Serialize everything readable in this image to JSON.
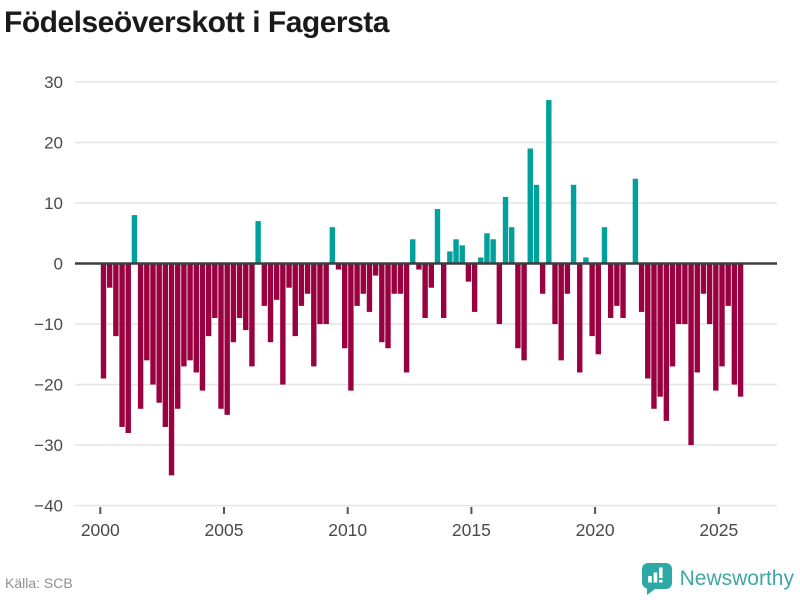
{
  "title": "Födelseöverskott i Fagersta",
  "source": "Källa: SCB",
  "logo": {
    "text": "Newsworthy"
  },
  "colors": {
    "positive": "#00A19C",
    "negative": "#9A0140",
    "grid": "#e6e6e6",
    "zero_line": "#3d3d3d",
    "axis_label": "#4a4a4a",
    "tick_mark": "#555555",
    "title": "#1a1a1a",
    "source_text": "#8f8f94",
    "logo_teal": "#3fa7a4"
  },
  "chart_data": {
    "type": "bar",
    "title": "Födelseöverskott i Fagersta",
    "source": "Källa: SCB",
    "frequency": "quarterly",
    "x_start": "2000Q1",
    "x_end": "2025Q4",
    "x_tick_labels": [
      "2000",
      "2005",
      "2010",
      "2015",
      "2020",
      "2025"
    ],
    "y_tick_labels": [
      "30",
      "20",
      "10",
      "0",
      "−10",
      "−20",
      "−30",
      "−40"
    ],
    "y_ticks": [
      30,
      20,
      10,
      0,
      -10,
      -20,
      -30,
      -40
    ],
    "ylim": [
      -40,
      30
    ],
    "grid": "horizontal",
    "legend": "none",
    "values": [
      -19,
      -4,
      -12,
      -27,
      -28,
      8,
      -24,
      -16,
      -20,
      -23,
      -27,
      -35,
      -24,
      -17,
      -16,
      -18,
      -21,
      -12,
      -9,
      -24,
      -25,
      -13,
      -9,
      -11,
      -17,
      7,
      -7,
      -13,
      -6,
      -20,
      -4,
      -12,
      -7,
      -5,
      -17,
      -10,
      -10,
      6,
      -1,
      -14,
      -21,
      -7,
      -5,
      -8,
      -2,
      -13,
      -14,
      -5,
      -5,
      -18,
      4,
      -1,
      -9,
      -4,
      9,
      -9,
      2,
      4,
      3,
      -3,
      -8,
      1,
      5,
      4,
      -10,
      11,
      6,
      -14,
      -16,
      19,
      13,
      -5,
      27,
      -10,
      -16,
      -5,
      13,
      -18,
      1,
      -12,
      -15,
      6,
      -9,
      -7,
      -9,
      0,
      14,
      -8,
      -19,
      -24,
      -22,
      -26,
      -17,
      -10,
      -10,
      -30,
      -18,
      -5,
      -10,
      -21,
      -17,
      -7,
      -20,
      -22
    ]
  }
}
